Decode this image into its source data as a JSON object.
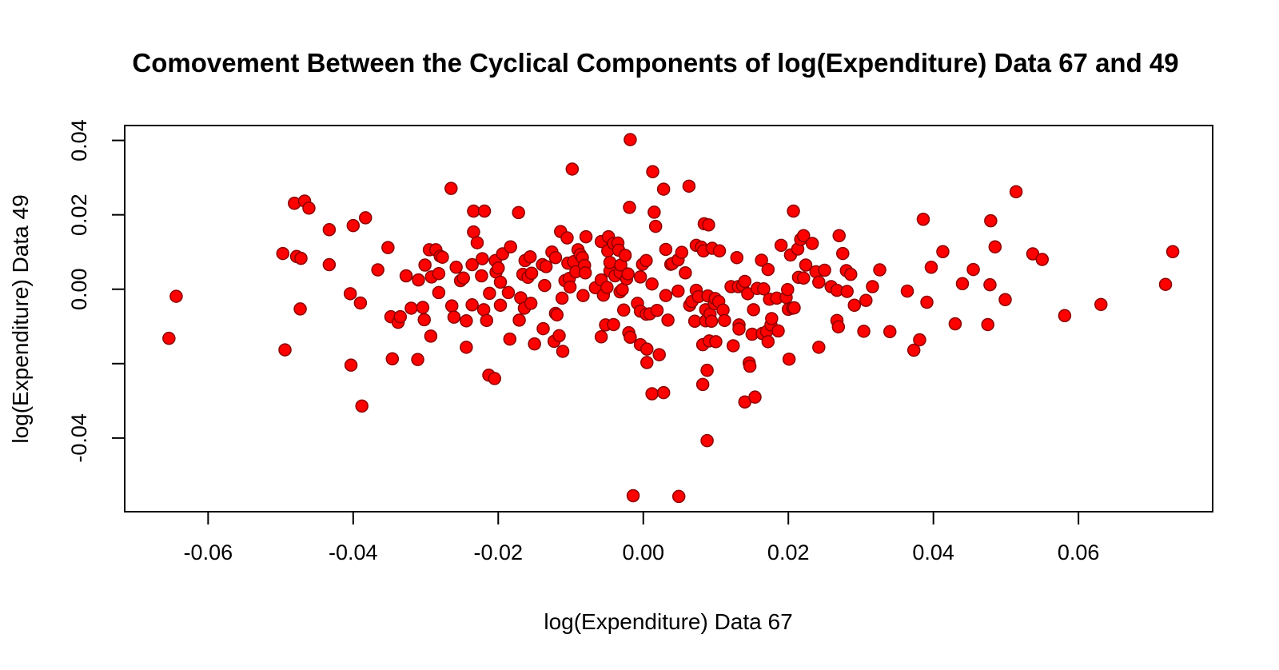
{
  "chart_data": {
    "type": "scatter",
    "title": "Comovement Between the Cyclical Components of log(Expenditure) Data 67 and 49",
    "xlabel": "log(Expenditure) Data 67",
    "ylabel": "log(Expenditure) Data 49",
    "xlim": [
      -0.0715,
      0.0785
    ],
    "ylim": [
      -0.0598,
      0.044
    ],
    "x_ticks": [
      -0.06,
      -0.04,
      -0.02,
      0.0,
      0.02,
      0.04,
      0.06
    ],
    "x_tick_labels": [
      "-0.06",
      "-0.04",
      "-0.02",
      "0.00",
      "0.02",
      "0.04",
      "0.06"
    ],
    "y_ticks": [
      -0.04,
      -0.02,
      0.0,
      0.02,
      0.04
    ],
    "y_tick_labels": [
      "-0.04",
      "",
      "0.00",
      "0.02",
      "0.04"
    ],
    "grid": false,
    "legend": "none",
    "marker_fill": "#ff0000",
    "marker_stroke": "#8b0000",
    "points": [
      [
        -0.0654,
        -0.0132
      ],
      [
        -0.0644,
        -0.0019
      ],
      [
        -0.0497,
        0.0096
      ],
      [
        -0.0494,
        -0.0163
      ],
      [
        -0.0481,
        0.0231
      ],
      [
        -0.0478,
        0.0088
      ],
      [
        -0.0473,
        -0.0053
      ],
      [
        -0.0472,
        0.0083
      ],
      [
        -0.0467,
        0.0237
      ],
      [
        -0.0461,
        0.0218
      ],
      [
        -0.0433,
        0.016
      ],
      [
        -0.0433,
        0.0066
      ],
      [
        -0.0404,
        -0.0012
      ],
      [
        -0.0403,
        -0.0204
      ],
      [
        -0.04,
        0.0171
      ],
      [
        -0.039,
        -0.0037
      ],
      [
        -0.0388,
        -0.0314
      ],
      [
        -0.0383,
        0.0192
      ],
      [
        -0.0366,
        0.0052
      ],
      [
        -0.0352,
        0.0112
      ],
      [
        -0.0348,
        -0.0074
      ],
      [
        -0.0346,
        -0.0187
      ],
      [
        -0.0338,
        -0.0089
      ],
      [
        -0.0335,
        -0.0074
      ],
      [
        -0.0327,
        0.0036
      ],
      [
        -0.032,
        -0.0051
      ],
      [
        -0.0311,
        -0.0189
      ],
      [
        -0.031,
        0.0025
      ],
      [
        -0.0304,
        -0.0049
      ],
      [
        -0.0302,
        -0.0082
      ],
      [
        -0.0301,
        0.0065
      ],
      [
        -0.0295,
        0.0106
      ],
      [
        -0.0293,
        -0.0126
      ],
      [
        -0.0292,
        0.0033
      ],
      [
        -0.0286,
        0.0106
      ],
      [
        -0.0282,
        -0.0009
      ],
      [
        -0.0282,
        0.0042
      ],
      [
        -0.028,
        0.0089
      ],
      [
        -0.0277,
        0.0086
      ],
      [
        -0.0265,
        0.0271
      ],
      [
        -0.0264,
        -0.0045
      ],
      [
        -0.0261,
        -0.0075
      ],
      [
        -0.0258,
        0.0059
      ],
      [
        -0.0252,
        0.0023
      ],
      [
        -0.0248,
        0.003
      ],
      [
        -0.0244,
        -0.0156
      ],
      [
        -0.0244,
        -0.0085
      ],
      [
        -0.0236,
        -0.0042
      ],
      [
        -0.0236,
        0.0066
      ],
      [
        -0.0234,
        0.021
      ],
      [
        -0.0234,
        0.0154
      ],
      [
        -0.0229,
        0.0125
      ],
      [
        -0.0223,
        0.0036
      ],
      [
        -0.0222,
        0.0082
      ],
      [
        -0.022,
        -0.0055
      ],
      [
        -0.0219,
        0.021
      ],
      [
        -0.0216,
        -0.0084
      ],
      [
        -0.0213,
        -0.0231
      ],
      [
        -0.0212,
        -0.0011
      ],
      [
        -0.0205,
        -0.024
      ],
      [
        -0.0204,
        0.0077
      ],
      [
        -0.0203,
        0.0046
      ],
      [
        -0.02,
        0.0057
      ],
      [
        -0.0197,
        -0.0043
      ],
      [
        -0.0197,
        0.0019
      ],
      [
        -0.0194,
        0.0095
      ],
      [
        -0.0186,
        -0.0009
      ],
      [
        -0.0184,
        -0.0134
      ],
      [
        -0.0183,
        0.0114
      ],
      [
        -0.0172,
        0.0206
      ],
      [
        -0.0171,
        -0.0083
      ],
      [
        -0.0169,
        -0.0023
      ],
      [
        -0.0166,
        0.004
      ],
      [
        -0.0164,
        -0.0051
      ],
      [
        -0.0163,
        0.0077
      ],
      [
        -0.0159,
        0.0032
      ],
      [
        -0.0156,
        0.0087
      ],
      [
        -0.0155,
        -0.0038
      ],
      [
        -0.0154,
        0.0043
      ],
      [
        -0.015,
        -0.0147
      ],
      [
        -0.0139,
        0.0066
      ],
      [
        -0.0138,
        -0.0106
      ],
      [
        -0.0136,
        0.001
      ],
      [
        -0.0134,
        0.0061
      ],
      [
        -0.0126,
        0.01
      ],
      [
        -0.0123,
        -0.014
      ],
      [
        -0.0121,
        -0.0065
      ],
      [
        -0.0121,
        0.0085
      ],
      [
        -0.0119,
        -0.0069
      ],
      [
        -0.0116,
        -0.0125
      ],
      [
        -0.0114,
        0.0155
      ],
      [
        -0.0112,
        -0.0024
      ],
      [
        -0.0111,
        -0.0167
      ],
      [
        -0.0108,
        0.0023
      ],
      [
        -0.0105,
        0.0138
      ],
      [
        -0.0104,
        0.007
      ],
      [
        -0.0102,
        0.0029
      ],
      [
        -0.0101,
        0.0006
      ],
      [
        -0.0098,
        0.0323
      ],
      [
        -0.0096,
        0.0074
      ],
      [
        -0.0093,
        0.0047
      ],
      [
        -0.009,
        0.0106
      ],
      [
        -0.0087,
        0.0093
      ],
      [
        -0.0084,
        0.0085
      ],
      [
        -0.0083,
        -0.0017
      ],
      [
        -0.0081,
        0.0064
      ],
      [
        -0.008,
        0.0044
      ],
      [
        -0.0079,
        0.0141
      ],
      [
        -0.0066,
        0.0004
      ],
      [
        -0.0058,
        0.0025
      ],
      [
        -0.0058,
        -0.0128
      ],
      [
        -0.0058,
        0.0128
      ],
      [
        -0.0055,
        -0.0016
      ],
      [
        -0.0052,
        -0.0096
      ],
      [
        -0.005,
        0.0005
      ],
      [
        -0.0049,
        0.0103
      ],
      [
        -0.0048,
        0.0141
      ],
      [
        -0.0046,
        0.0049
      ],
      [
        -0.0046,
        0.0072
      ],
      [
        -0.0041,
        -0.0095
      ],
      [
        -0.0041,
        0.0123
      ],
      [
        -0.0039,
        0.0036
      ],
      [
        -0.0035,
        0.0124
      ],
      [
        -0.0034,
        0.0105
      ],
      [
        -0.0032,
        0.0045
      ],
      [
        -0.0032,
        -0.0007
      ],
      [
        -0.0031,
        0.0065
      ],
      [
        -0.0029,
        -0.0001
      ],
      [
        -0.0027,
        -0.0056
      ],
      [
        -0.0025,
        0.0091
      ],
      [
        -0.0023,
        0.0028
      ],
      [
        -0.0021,
        0.0041
      ],
      [
        -0.002,
        -0.0117
      ],
      [
        -0.0019,
        0.022
      ],
      [
        -0.0018,
        0.0402
      ],
      [
        -0.0018,
        -0.0129
      ],
      [
        -0.0014,
        -0.0555
      ],
      [
        -0.0008,
        -0.0038
      ],
      [
        -0.0004,
        -0.0149
      ],
      [
        -0.0004,
        0.0033
      ],
      [
        -0.0004,
        -0.0059
      ],
      [
        -0.0001,
        0.0067
      ],
      [
        0.0004,
        0.0077
      ],
      [
        0.0004,
        -0.0067
      ],
      [
        0.0005,
        -0.0161
      ],
      [
        0.0005,
        -0.0197
      ],
      [
        0.0009,
        -0.0066
      ],
      [
        0.0012,
        -0.0281
      ],
      [
        0.0012,
        0.0014
      ],
      [
        0.0013,
        0.0316
      ],
      [
        0.0015,
        0.0207
      ],
      [
        0.0017,
        0.0169
      ],
      [
        0.0019,
        -0.0057
      ],
      [
        0.0022,
        -0.0176
      ],
      [
        0.0028,
        -0.0278
      ],
      [
        0.0028,
        0.0269
      ],
      [
        0.0031,
        -0.0017
      ],
      [
        0.0031,
        0.0107
      ],
      [
        0.0034,
        -0.0083
      ],
      [
        0.0038,
        0.0067
      ],
      [
        0.004,
        0.0069
      ],
      [
        0.0048,
        0.0079
      ],
      [
        0.0048,
        -0.0005
      ],
      [
        0.0049,
        -0.0557
      ],
      [
        0.0053,
        0.0099
      ],
      [
        0.0058,
        0.0044
      ],
      [
        0.0063,
        0.0277
      ],
      [
        0.0064,
        -0.0043
      ],
      [
        0.0067,
        -0.0033
      ],
      [
        0.0071,
        -0.0086
      ],
      [
        0.0073,
        0.0118
      ],
      [
        0.0073,
        -0.0003
      ],
      [
        0.0076,
        -0.002
      ],
      [
        0.008,
        0.0113
      ],
      [
        0.0082,
        -0.0256
      ],
      [
        0.0082,
        -0.0149
      ],
      [
        0.0083,
        0.0103
      ],
      [
        0.0084,
        0.0176
      ],
      [
        0.0086,
        -0.0055
      ],
      [
        0.0086,
        -0.0085
      ],
      [
        0.0088,
        -0.0218
      ],
      [
        0.0088,
        -0.0407
      ],
      [
        0.0089,
        -0.0018
      ],
      [
        0.009,
        0.0173
      ],
      [
        0.0091,
        -0.0139
      ],
      [
        0.0092,
        -0.0067
      ],
      [
        0.0094,
        -0.0086
      ],
      [
        0.0095,
        0.011
      ],
      [
        0.0098,
        -0.0039
      ],
      [
        0.0099,
        -0.0025
      ],
      [
        0.01,
        -0.0141
      ],
      [
        0.0104,
        -0.0033
      ],
      [
        0.0105,
        0.0103
      ],
      [
        0.011,
        -0.0056
      ],
      [
        0.0112,
        -0.0084
      ],
      [
        0.0121,
        0.0007
      ],
      [
        0.0124,
        -0.0152
      ],
      [
        0.0129,
        0.0085
      ],
      [
        0.0131,
        0.0007
      ],
      [
        0.0132,
        -0.0096
      ],
      [
        0.0132,
        -0.0107
      ],
      [
        0.0137,
        0.001
      ],
      [
        0.014,
        -0.0303
      ],
      [
        0.014,
        0.0021
      ],
      [
        0.0144,
        -0.0012
      ],
      [
        0.0146,
        -0.0198
      ],
      [
        0.0147,
        -0.0207
      ],
      [
        0.015,
        -0.0121
      ],
      [
        0.0152,
        -0.0055
      ],
      [
        0.0154,
        -0.029
      ],
      [
        0.0157,
        0.0002
      ],
      [
        0.0163,
        0.0078
      ],
      [
        0.0164,
        -0.0119
      ],
      [
        0.0166,
        0.0001
      ],
      [
        0.017,
        -0.0114
      ],
      [
        0.0172,
        0.0053
      ],
      [
        0.0172,
        -0.0141
      ],
      [
        0.0174,
        -0.0027
      ],
      [
        0.0176,
        -0.0096
      ],
      [
        0.0177,
        -0.0079
      ],
      [
        0.0184,
        -0.0024
      ],
      [
        0.0186,
        -0.0112
      ],
      [
        0.019,
        0.0118
      ],
      [
        0.0197,
        -0.0022
      ],
      [
        0.0199,
        -0.0001
      ],
      [
        0.02,
        -0.0054
      ],
      [
        0.0201,
        -0.0188
      ],
      [
        0.0203,
        0.0092
      ],
      [
        0.0206,
        -0.0051
      ],
      [
        0.0207,
        0.021
      ],
      [
        0.0208,
        -0.005
      ],
      [
        0.0213,
        0.0108
      ],
      [
        0.0214,
        0.0032
      ],
      [
        0.0217,
        0.0134
      ],
      [
        0.0221,
        0.0144
      ],
      [
        0.0221,
        0.003
      ],
      [
        0.0224,
        0.0065
      ],
      [
        0.0233,
        0.0123
      ],
      [
        0.0238,
        0.0047
      ],
      [
        0.0242,
        -0.0156
      ],
      [
        0.0242,
        0.0019
      ],
      [
        0.025,
        0.0051
      ],
      [
        0.0259,
        0.0007
      ],
      [
        0.0267,
        -0.0003
      ],
      [
        0.0267,
        -0.0084
      ],
      [
        0.0269,
        -0.0101
      ],
      [
        0.027,
        0.0144
      ],
      [
        0.0275,
        0.0096
      ],
      [
        0.028,
        0.005
      ],
      [
        0.0281,
        -0.0006
      ],
      [
        0.0286,
        0.004
      ],
      [
        0.0291,
        -0.0043
      ],
      [
        0.0304,
        -0.0113
      ],
      [
        0.0307,
        -0.003
      ],
      [
        0.0316,
        0.0007
      ],
      [
        0.0326,
        0.0052
      ],
      [
        0.034,
        -0.0114
      ],
      [
        0.0364,
        -0.0005
      ],
      [
        0.0373,
        -0.0164
      ],
      [
        0.0381,
        -0.0136
      ],
      [
        0.0386,
        0.0188
      ],
      [
        0.0391,
        -0.0035
      ],
      [
        0.0397,
        0.0059
      ],
      [
        0.0413,
        0.0101
      ],
      [
        0.043,
        -0.0093
      ],
      [
        0.044,
        0.0015
      ],
      [
        0.0455,
        0.0053
      ],
      [
        0.0475,
        -0.0095
      ],
      [
        0.0478,
        0.0012
      ],
      [
        0.0479,
        0.0184
      ],
      [
        0.0485,
        0.0114
      ],
      [
        0.0499,
        -0.0028
      ],
      [
        0.0514,
        0.0262
      ],
      [
        0.0537,
        0.0095
      ],
      [
        0.055,
        0.008
      ],
      [
        0.0581,
        -0.0071
      ],
      [
        0.0631,
        -0.0041
      ],
      [
        0.072,
        0.0013
      ],
      [
        0.073,
        0.0101
      ]
    ]
  }
}
